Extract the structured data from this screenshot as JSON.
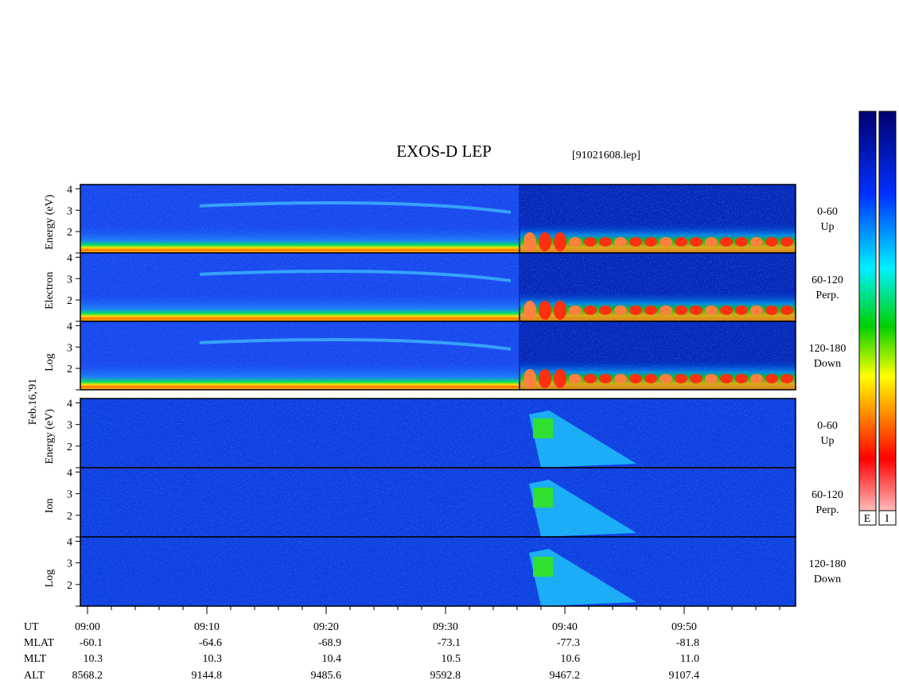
{
  "title": "EXOS-D LEP",
  "file": "[91021608.lep]",
  "date": "Feb.16,'91",
  "electron": {
    "axis_words": [
      "Log",
      "Electron",
      "Energy (eV)"
    ],
    "panels": [
      {
        "range": "0-60",
        "direction": "Up"
      },
      {
        "range": "60-120",
        "direction": "Perp."
      },
      {
        "range": "120-180",
        "direction": "Down"
      }
    ]
  },
  "ion": {
    "axis_words": [
      "Log",
      "Ion",
      "Energy (eV)"
    ],
    "panels": [
      {
        "range": "0-60",
        "direction": "Up"
      },
      {
        "range": "60-120",
        "direction": "Perp."
      },
      {
        "range": "120-180",
        "direction": "Down"
      }
    ]
  },
  "ylim": [
    1,
    4.2
  ],
  "yticks": [
    2,
    3,
    4
  ],
  "colorbar_labels": [
    "E",
    "I"
  ],
  "ephemeris": [
    {
      "name": "UT",
      "values": [
        "09:00",
        "09:10",
        "09:20",
        "09:30",
        "09:40",
        "09:50"
      ]
    },
    {
      "name": "MLAT",
      "values": [
        "-60.1",
        "-64.6",
        "-68.9",
        "-73.1",
        "-77.3",
        "-81.8"
      ]
    },
    {
      "name": "MLT",
      "values": [
        "10.3",
        "10.3",
        "10.4",
        "10.5",
        "10.6",
        "11.0"
      ]
    },
    {
      "name": "ALT",
      "values": [
        "8568.2",
        "9144.8",
        "9485.6",
        "9592.8",
        "9467.2",
        "9107.4"
      ]
    }
  ]
}
